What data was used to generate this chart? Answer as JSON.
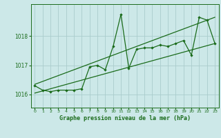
{
  "bg_color": "#cce8e8",
  "grid_color": "#aacccc",
  "line_color": "#1a6b1a",
  "xlabel": "Graphe pression niveau de la mer (hPa)",
  "ylim": [
    1015.55,
    1019.1
  ],
  "xlim": [
    -0.5,
    23.5
  ],
  "yticks": [
    1016,
    1017,
    1018
  ],
  "xticks": [
    0,
    1,
    2,
    3,
    4,
    5,
    6,
    7,
    8,
    9,
    10,
    11,
    12,
    13,
    14,
    15,
    16,
    17,
    18,
    19,
    20,
    21,
    22,
    23
  ],
  "line1_x": [
    0,
    1,
    2,
    3,
    4,
    5,
    6,
    7,
    8,
    9,
    10,
    11,
    12,
    13,
    14,
    15,
    16,
    17,
    18,
    19,
    20,
    21,
    22,
    23
  ],
  "line1_y": [
    1016.3,
    1016.15,
    1016.1,
    1016.15,
    1016.15,
    1016.15,
    1016.2,
    1016.95,
    1017.0,
    1016.85,
    1017.65,
    1018.75,
    1016.9,
    1017.55,
    1017.6,
    1017.6,
    1017.7,
    1017.65,
    1017.75,
    1017.85,
    1017.35,
    1018.65,
    1018.55,
    1017.75
  ],
  "line2_x": [
    0,
    23
  ],
  "line2_y": [
    1016.05,
    1017.75
  ],
  "line3_x": [
    0,
    23
  ],
  "line3_y": [
    1016.35,
    1018.65
  ],
  "figsize": [
    3.2,
    2.0
  ],
  "dpi": 100
}
